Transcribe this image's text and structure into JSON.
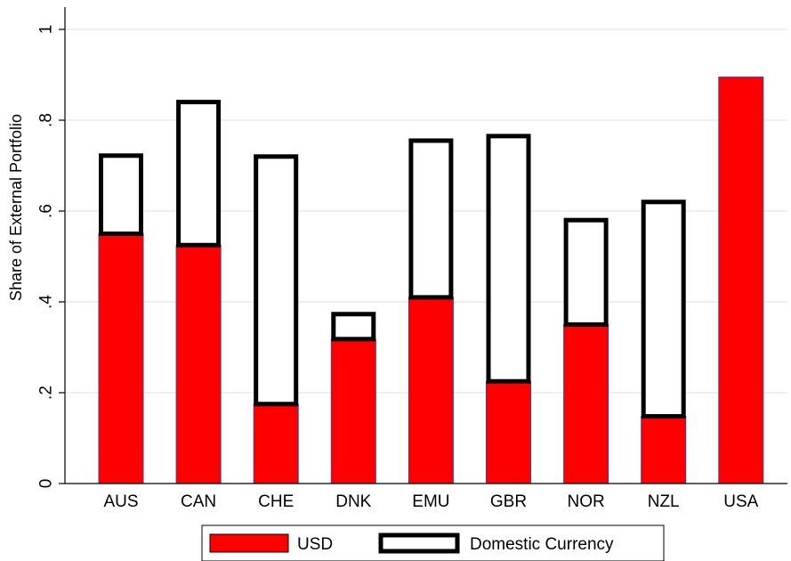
{
  "chart_data": {
    "type": "bar",
    "stacked": true,
    "categories": [
      "AUS",
      "CAN",
      "CHE",
      "DNK",
      "EMU",
      "GBR",
      "NOR",
      "NZL",
      "USA"
    ],
    "series": [
      {
        "name": "USD",
        "values": [
          0.55,
          0.525,
          0.175,
          0.318,
          0.41,
          0.225,
          0.35,
          0.148,
          0.895
        ],
        "color": "#ff0000"
      },
      {
        "name": "Domestic Currency",
        "values": [
          0.172,
          0.315,
          0.545,
          0.055,
          0.345,
          0.54,
          0.23,
          0.472,
          0.0
        ],
        "color": "#ffffff"
      }
    ],
    "title": "",
    "xlabel": "",
    "ylabel": "Share of External Portfolio",
    "ylim": [
      0,
      1
    ],
    "yticks": [
      0,
      0.2,
      0.4,
      0.6,
      0.8,
      1
    ],
    "ytick_labels": [
      "0",
      ".2",
      ".4",
      ".6",
      ".8",
      "1"
    ],
    "grid": true,
    "legend_position": "bottom"
  }
}
